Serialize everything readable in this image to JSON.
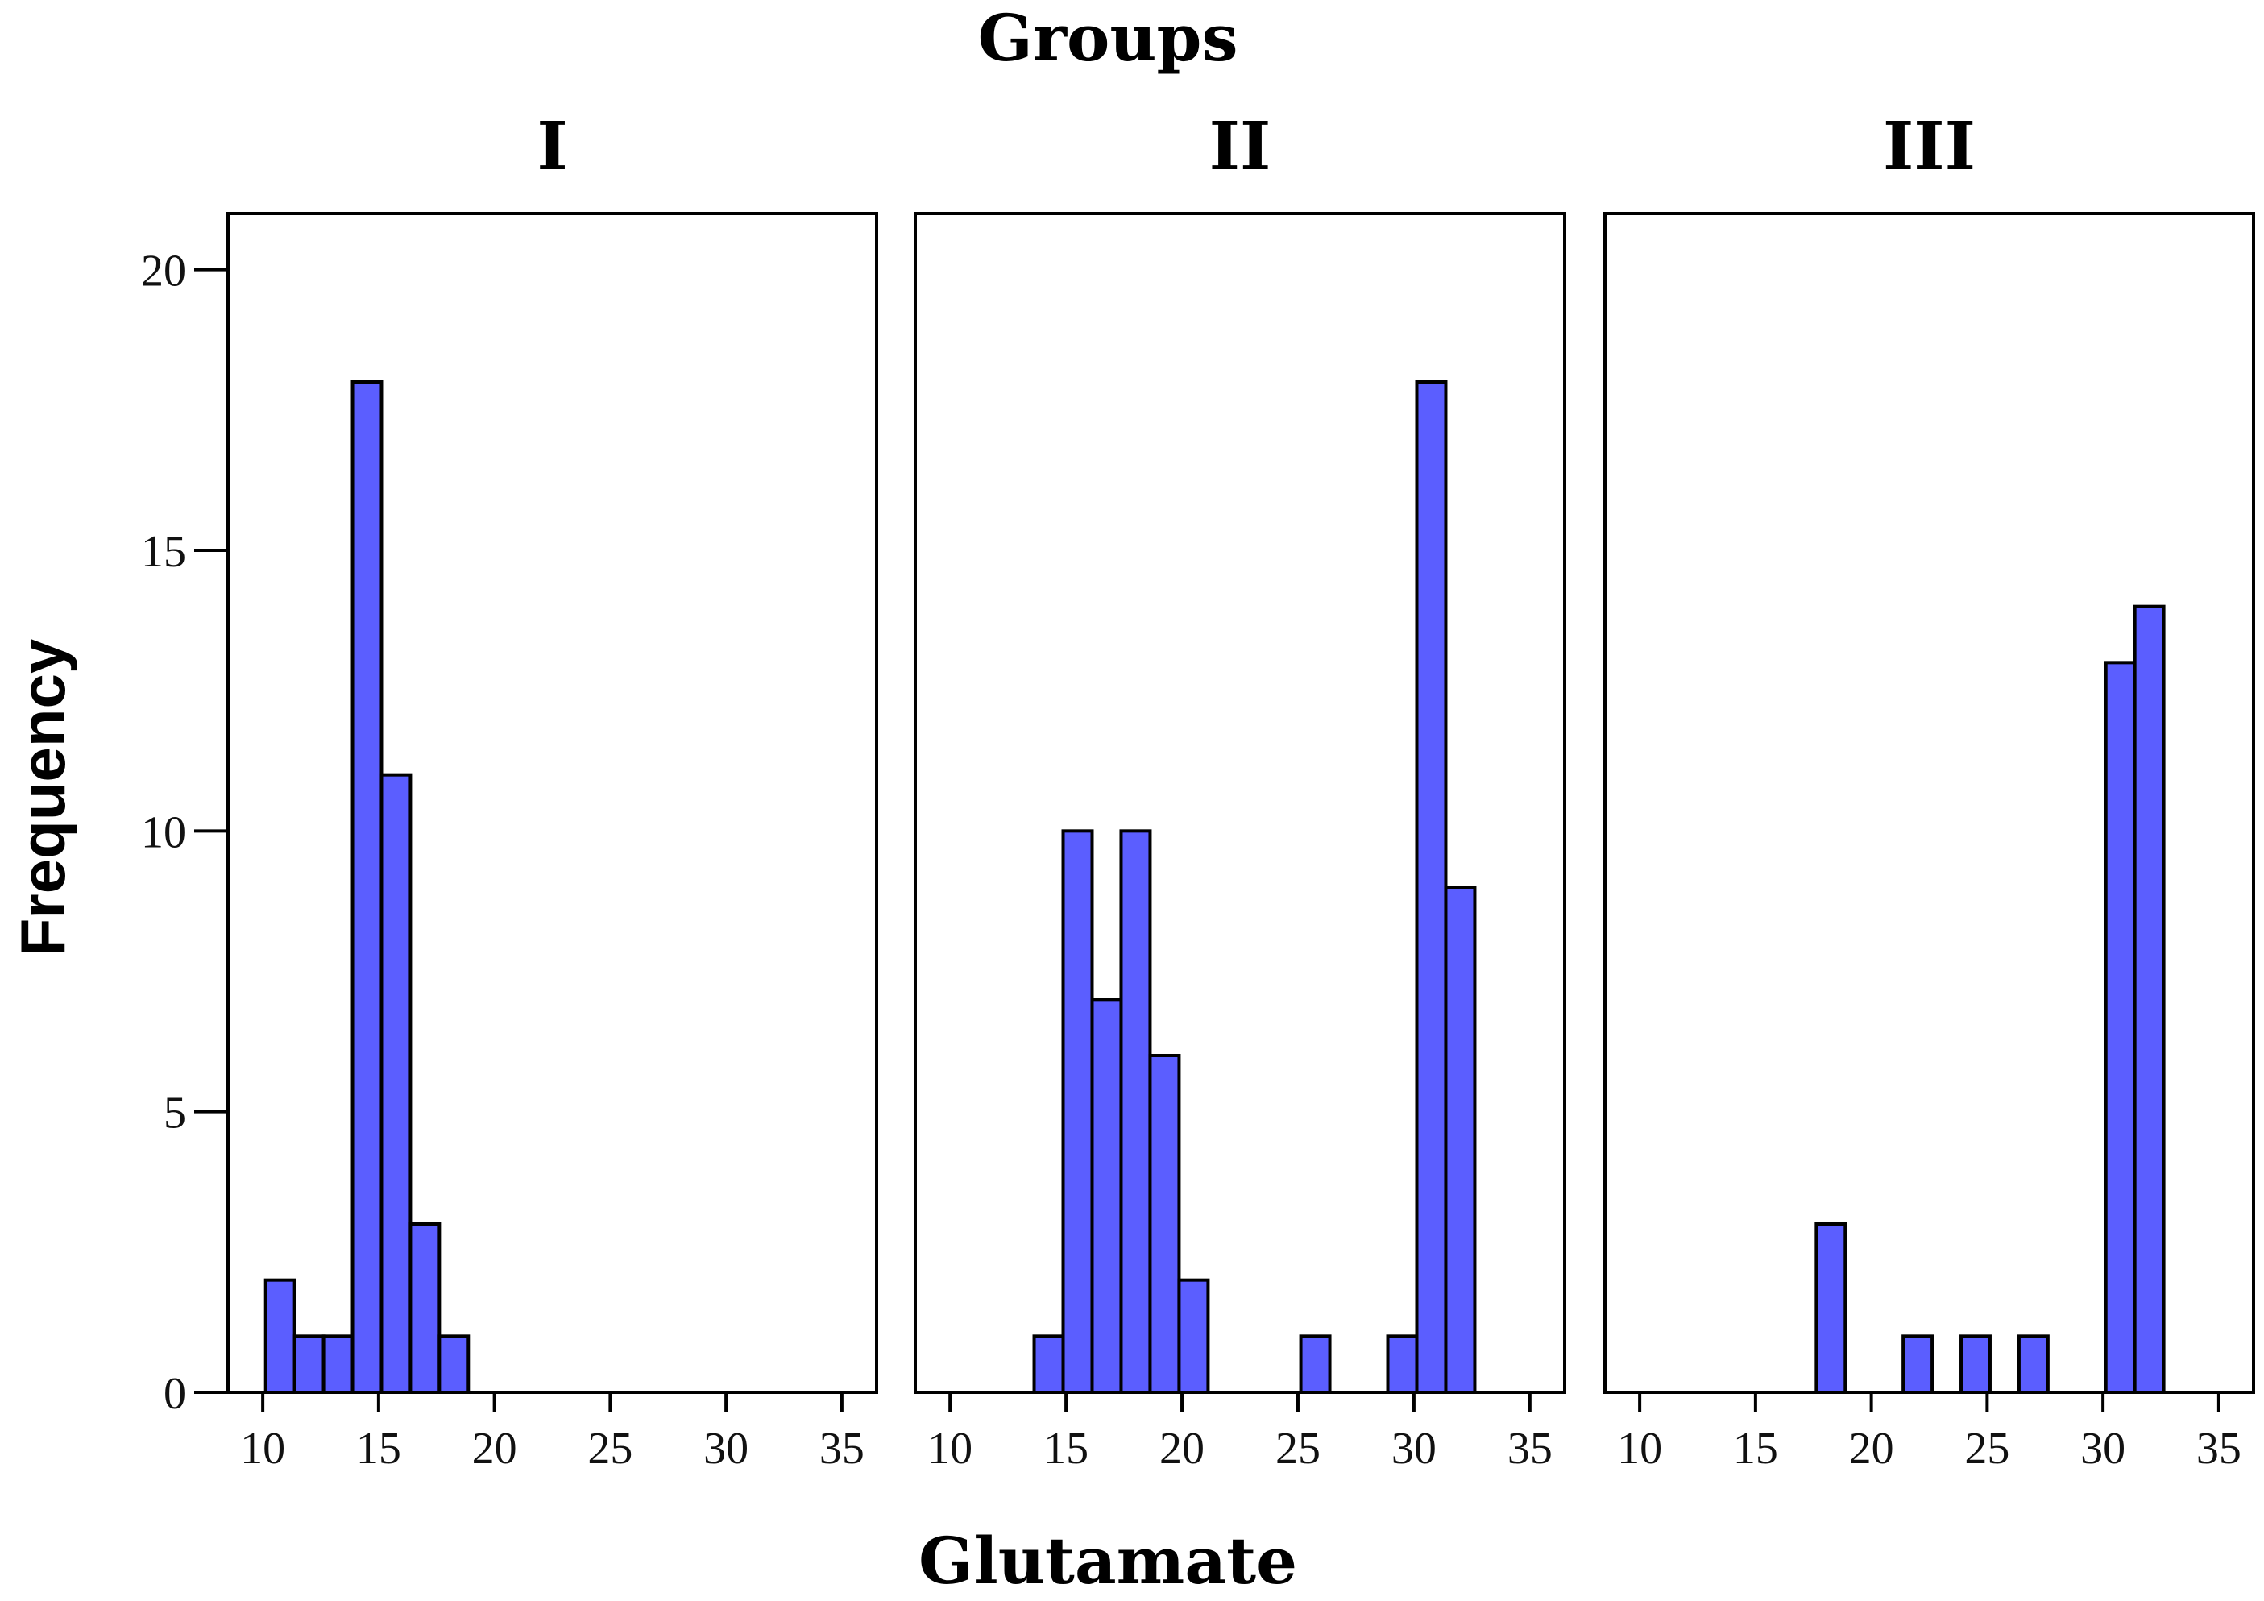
{
  "chart_data": {
    "type": "bar",
    "title": "Groups",
    "xlabel": "Glutamate",
    "ylabel": "Frequency",
    "ylim": [
      0,
      21
    ],
    "yticks": [
      0,
      5,
      10,
      15,
      20
    ],
    "xlim": [
      8.5,
      36.5
    ],
    "xticks": [
      10,
      15,
      20,
      25,
      30,
      35
    ],
    "bin_width": 1.25,
    "bar_color": "#5b5eff",
    "panels": [
      {
        "name": "I",
        "bins": [
          {
            "center": 10.75,
            "count": 2
          },
          {
            "center": 12.0,
            "count": 1
          },
          {
            "center": 13.25,
            "count": 1
          },
          {
            "center": 14.5,
            "count": 18
          },
          {
            "center": 15.75,
            "count": 11
          },
          {
            "center": 17.0,
            "count": 3
          },
          {
            "center": 18.25,
            "count": 1
          }
        ]
      },
      {
        "name": "II",
        "bins": [
          {
            "center": 14.25,
            "count": 1
          },
          {
            "center": 15.5,
            "count": 10
          },
          {
            "center": 16.75,
            "count": 7
          },
          {
            "center": 18.0,
            "count": 10
          },
          {
            "center": 19.25,
            "count": 6
          },
          {
            "center": 20.5,
            "count": 2
          },
          {
            "center": 25.75,
            "count": 1
          },
          {
            "center": 29.5,
            "count": 1
          },
          {
            "center": 30.75,
            "count": 18
          },
          {
            "center": 32.0,
            "count": 9
          }
        ]
      },
      {
        "name": "III",
        "bins": [
          {
            "center": 18.25,
            "count": 3
          },
          {
            "center": 22.0,
            "count": 1
          },
          {
            "center": 24.5,
            "count": 1
          },
          {
            "center": 27.0,
            "count": 1
          },
          {
            "center": 30.75,
            "count": 13
          },
          {
            "center": 32.0,
            "count": 14
          }
        ]
      }
    ]
  }
}
